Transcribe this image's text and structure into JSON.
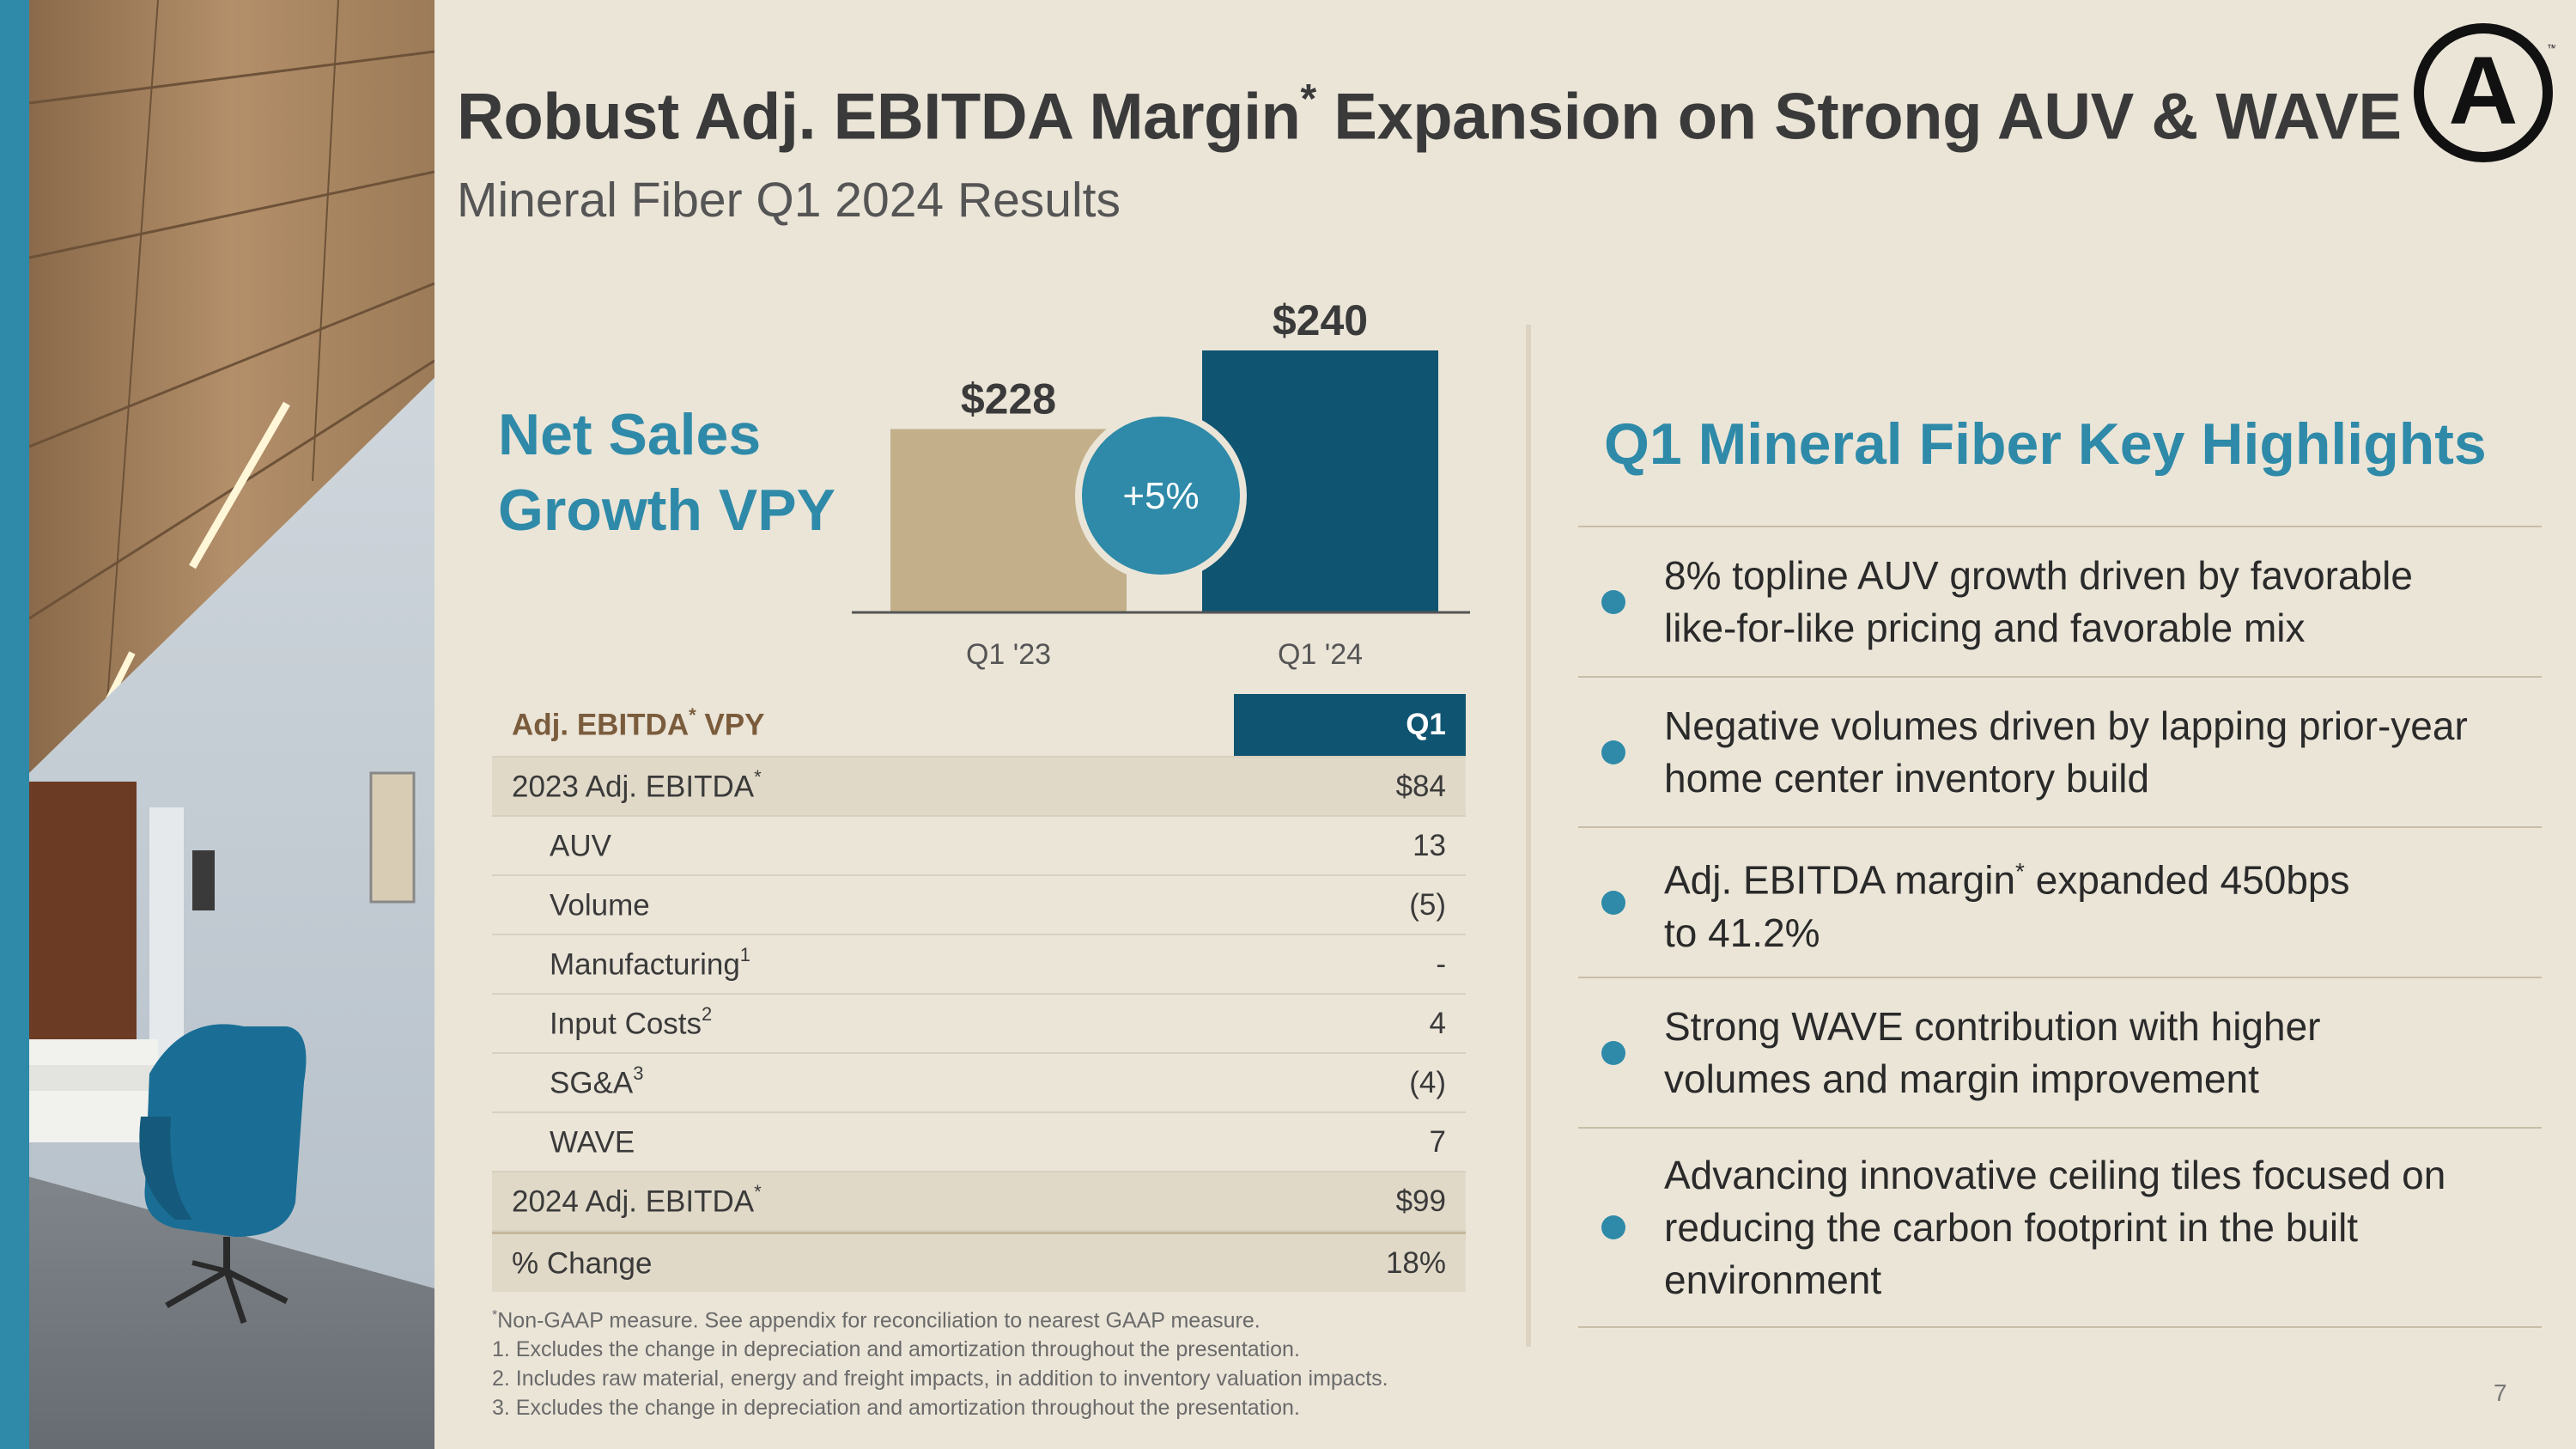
{
  "slide": {
    "title_main": "Robust Adj. EBITDA Margin",
    "title_mark": "*",
    "title_rest": " Expansion on Strong AUV & WAVE",
    "subtitle": "Mineral Fiber Q1 2024 Results",
    "page_number": "7"
  },
  "net_sales": {
    "label_line1": "Net Sales",
    "label_line2": "Growth VPY",
    "growth_badge": "+5%"
  },
  "chart_data": {
    "type": "bar",
    "categories": [
      "Q1 '23",
      "Q1 '24"
    ],
    "values": [
      228,
      240
    ],
    "value_labels": [
      "$228",
      "$240"
    ],
    "colors": [
      "#c3b08b",
      "#0f5470"
    ],
    "annotation": "+5%",
    "ylim": [
      0,
      240
    ]
  },
  "ebitda_table": {
    "header_label": "Adj. EBITDA",
    "header_suffix": " VPY",
    "header_col": "Q1",
    "star": "*",
    "rows": [
      {
        "label": "2023 Adj. EBITDA",
        "sup": "*",
        "value": "$84"
      },
      {
        "label": "AUV",
        "sup": "",
        "value": "13"
      },
      {
        "label": "Volume",
        "sup": "",
        "value": "(5)"
      },
      {
        "label": "Manufacturing",
        "sup": "1",
        "value": "-"
      },
      {
        "label": "Input Costs",
        "sup": "2",
        "value": "4"
      },
      {
        "label": "SG&A",
        "sup": "3",
        "value": "(4)"
      },
      {
        "label": "WAVE",
        "sup": "",
        "value": "7"
      },
      {
        "label": "2024 Adj. EBITDA",
        "sup": "*",
        "value": "$99"
      },
      {
        "label": "% Change",
        "sup": "",
        "value": "18%"
      }
    ]
  },
  "footnotes": {
    "star": "*",
    "note0": "Non-GAAP measure. See appendix for reconciliation to nearest GAAP measure.",
    "note1": "1. Excludes the change in depreciation and amortization throughout the presentation.",
    "note2": "2. Includes raw material, energy and freight impacts, in addition to inventory valuation impacts.",
    "note3": "3. Excludes the change in depreciation and amortization throughout the presentation."
  },
  "highlights": {
    "title": "Q1 Mineral Fiber Key Highlights",
    "item1_line1": "8% topline AUV growth driven by favorable",
    "item1_line2": "like-for-like pricing and favorable mix",
    "item2_line1": "Negative volumes driven by lapping prior-year",
    "item2_line2": "home center inventory build",
    "item3_line1a": "Adj. EBITDA margin",
    "item3_star": "*",
    "item3_line1b": " expanded 450bps",
    "item3_line2": "to 41.2%",
    "item4_line1": "Strong WAVE contribution with higher",
    "item4_line2": "volumes and margin improvement",
    "item5_line1": "Advancing innovative ceiling tiles focused on",
    "item5_line2": "reducing the carbon footprint in the built",
    "item5_line3": "environment"
  },
  "logo": {
    "letter": "A",
    "tm": "™"
  },
  "icons": {
    "logo": "armstrong-logo-icon",
    "bullet": "bullet-dot-icon"
  }
}
